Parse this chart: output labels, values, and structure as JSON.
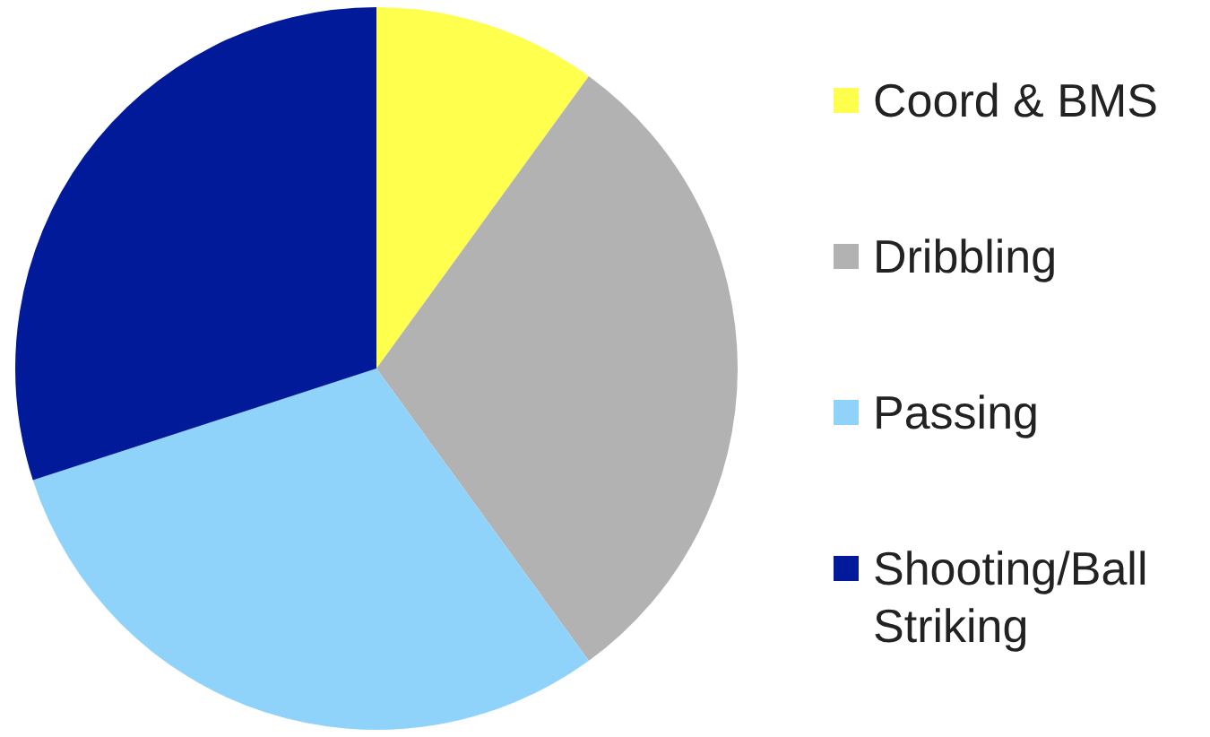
{
  "chart_data": {
    "type": "pie",
    "categories": [
      "Coord & BMS",
      "Dribbling",
      "Passing",
      "Shooting/Ball Striking"
    ],
    "values": [
      10,
      30,
      30,
      30
    ],
    "colors": [
      "#ffff4d",
      "#b2b2b2",
      "#8fd3fb",
      "#001a99"
    ],
    "legend": "right"
  }
}
